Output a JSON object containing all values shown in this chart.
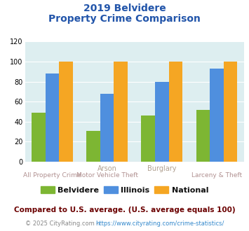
{
  "title_line1": "2019 Belvidere",
  "title_line2": "Property Crime Comparison",
  "belvidere": [
    49,
    31,
    46,
    52
  ],
  "illinois": [
    88,
    68,
    80,
    93
  ],
  "national": [
    100,
    100,
    100,
    100
  ],
  "color_belvidere": "#7db633",
  "color_illinois": "#4f8fde",
  "color_national": "#f5a623",
  "ylim": [
    0,
    120
  ],
  "yticks": [
    0,
    20,
    40,
    60,
    80,
    100,
    120
  ],
  "legend_labels": [
    "Belvidere",
    "Illinois",
    "National"
  ],
  "top_labels": [
    "",
    "Arson",
    "Burglary",
    ""
  ],
  "bottom_labels": [
    "All Property Crime",
    "Motor Vehicle Theft",
    "",
    "Larceny & Theft"
  ],
  "footnote1": "Compared to U.S. average. (U.S. average equals 100)",
  "footnote2_gray": "© 2025 CityRating.com - ",
  "footnote2_url": "https://www.cityrating.com/crime-statistics/",
  "plot_bg_color": "#ddeef0",
  "title_color": "#2255aa",
  "top_label_color": "#b0a090",
  "bottom_label_color": "#b09090",
  "legend_text_color": "#111111",
  "footnote1_color": "#6b0000",
  "footnote2_gray_color": "#888888",
  "footnote2_url_color": "#3388cc",
  "bar_width": 0.25
}
